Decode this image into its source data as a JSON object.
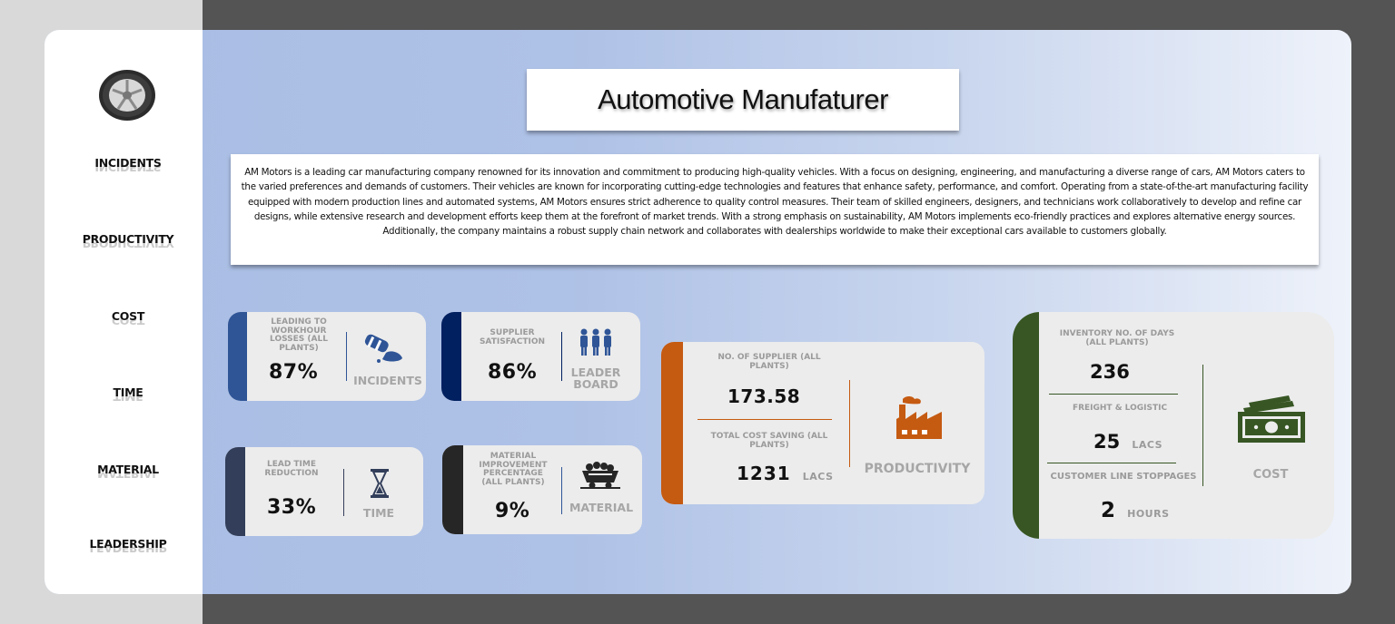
{
  "sidebar": {
    "items": [
      {
        "label": "INCIDENTS"
      },
      {
        "label": "PRODUCTIVITY"
      },
      {
        "label": "COST"
      },
      {
        "label": "TIME"
      },
      {
        "label": "MATERIAL"
      },
      {
        "label": "LEADERSHIP"
      }
    ]
  },
  "header": {
    "title": "Automotive Manufaturer"
  },
  "description": "AM Motors is a leading car manufacturing company renowned for its innovation and commitment to producing high-quality vehicles. With a focus on designing, engineering, and manufacturing a diverse range of cars, AM Motors caters to the varied preferences and demands of customers. Their vehicles are known for incorporating cutting-edge technologies and features that enhance safety, performance, and comfort. Operating from a state-of-the-art manufacturing facility equipped with modern production lines and automated systems, AM Motors ensures strict adherence to quality control measures. Their team of skilled engineers, designers, and technicians work collaboratively to develop and refine car designs, while extensive research and development efforts keep them at the forefront of market trends. With a strong emphasis on sustainability, AM Motors implements eco-friendly practices and explores alternative energy sources. Additionally, the company maintains a robust supply chain network and collaborates with dealerships worldwide to make their exceptional cars available to customers globally.",
  "cards": {
    "incidents": {
      "label": "LEADING TO WORKHOUR LOSSES (ALL PLANTS)",
      "value": "87%",
      "category": "INCIDENTS",
      "color": "#2f5597",
      "icon": "spill-barrel-icon"
    },
    "leader": {
      "label": "SUPPLIER SATISFACTION",
      "value": "86%",
      "category_line1": "LEADER",
      "category_line2": "BOARD",
      "color": "#002060",
      "icon": "team-icon"
    },
    "time": {
      "label": "LEAD TIME REDUCTION",
      "value": "33%",
      "category": "TIME",
      "color": "#323e5a",
      "icon": "hourglass-icon"
    },
    "material": {
      "label": "MATERIAL IMPROVEMENT PERCENTAGE (ALL PLANTS)",
      "value": "9%",
      "category": "MATERIAL",
      "color": "#262626",
      "icon": "mine-cart-icon"
    },
    "productivity": {
      "label1": "NO. OF SUPPLIER (ALL PLANTS)",
      "value1": "173.58",
      "label2": "TOTAL COST SAVING (ALL PLANTS)",
      "value2": "1231",
      "unit2": "LACS",
      "category": "PRODUCTIVITY",
      "color": "#c55a11",
      "icon": "factory-icon"
    },
    "cost": {
      "label1": "INVENTORY NO. OF DAYS (ALL PLANTS)",
      "value1": "236",
      "label2": "FREIGHT & LOGISTIC",
      "value2": "25",
      "unit2": "LACS",
      "label3": "CUSTOMER LINE STOPPAGES",
      "value3": "2",
      "unit3": "HOURS",
      "category": "COST",
      "color": "#375623",
      "icon": "money-icon"
    }
  }
}
